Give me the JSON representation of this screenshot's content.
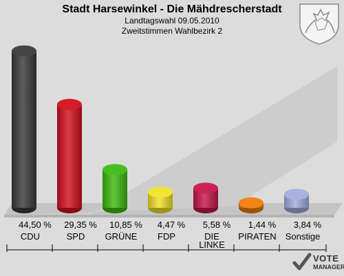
{
  "header": {
    "title": "Stadt Harsewinkel - Die Mähdrescherstadt",
    "line1": "Landtagswahl 09.05.2010",
    "line2": "Zweitstimmen Wahlbezirk 2"
  },
  "logo": {
    "line1": "VOTE",
    "line2": "MANAGER"
  },
  "chart_data": {
    "type": "bar",
    "categories": [
      "CDU",
      "SPD",
      "GRÜNE",
      "FDP",
      "DIE LINKE",
      "PIRATEN",
      "Sonstige"
    ],
    "category_lines": [
      [
        "CDU"
      ],
      [
        "SPD"
      ],
      [
        "GRÜNE"
      ],
      [
        "FDP"
      ],
      [
        "DIE",
        "LINKE"
      ],
      [
        "PIRATEN"
      ],
      [
        "Sonstige"
      ]
    ],
    "values": [
      44.5,
      29.35,
      10.85,
      4.47,
      5.58,
      1.44,
      3.84
    ],
    "value_labels": [
      "44,50 %",
      "29,35 %",
      "10,85 %",
      "4,47 %",
      "5,58 %",
      "1,44 %",
      "3,84 %"
    ],
    "colors": [
      "#3a3a3a",
      "#d40f1e",
      "#3dbb11",
      "#f2e32a",
      "#c8154a",
      "#f27d0a",
      "#a2aedc"
    ],
    "ylim": [
      0,
      44.5
    ]
  }
}
